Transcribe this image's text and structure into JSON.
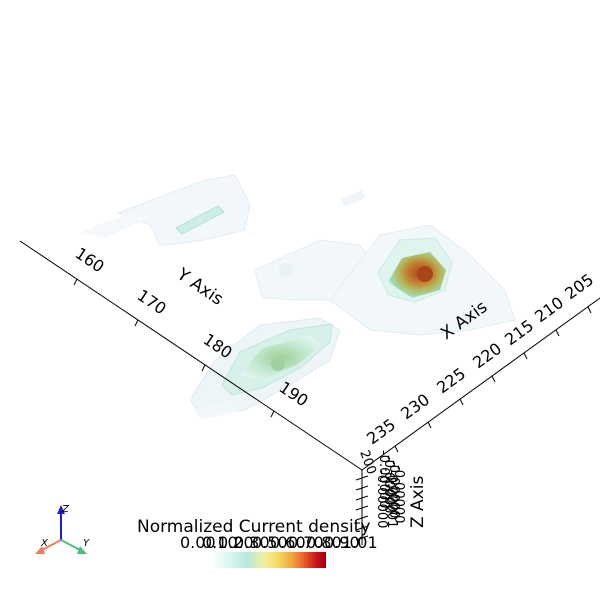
{
  "axes": {
    "y_axis": {
      "title": "Y Axis",
      "ticks": [
        "160",
        "170",
        "180",
        "190"
      ]
    },
    "x_axis": {
      "title": "X Axis",
      "ticks": [
        "235",
        "230",
        "225",
        "220",
        "215",
        "210",
        "205"
      ]
    },
    "z_axis": {
      "title": "Z Axis",
      "ticks": [
        "200",
        "-0.00000",
        "-0.00000",
        "-0.00000",
        "-0.00000",
        "-0.00000",
        "-0.00001"
      ]
    }
  },
  "colorbar": {
    "title": "Normalized Current density",
    "ticks": [
      "0.00",
      "0.10",
      "0.20",
      "0.30",
      "0.50",
      "0.60",
      "0.70",
      "0.80",
      "0.90",
      "1.01"
    ],
    "colors": [
      "#f6fdfc",
      "#d9f4ee",
      "#b6eadb",
      "#f2f0a0",
      "#f5d65c",
      "#f3a23a",
      "#e5542a",
      "#c8121a",
      "#a0000f"
    ]
  },
  "orientation_widget": {
    "x_label": "X",
    "y_label": "Y",
    "z_label": "Z",
    "x_color": "#e8815b",
    "y_color": "#4dbf7d",
    "z_color": "#1c1ccc"
  }
}
